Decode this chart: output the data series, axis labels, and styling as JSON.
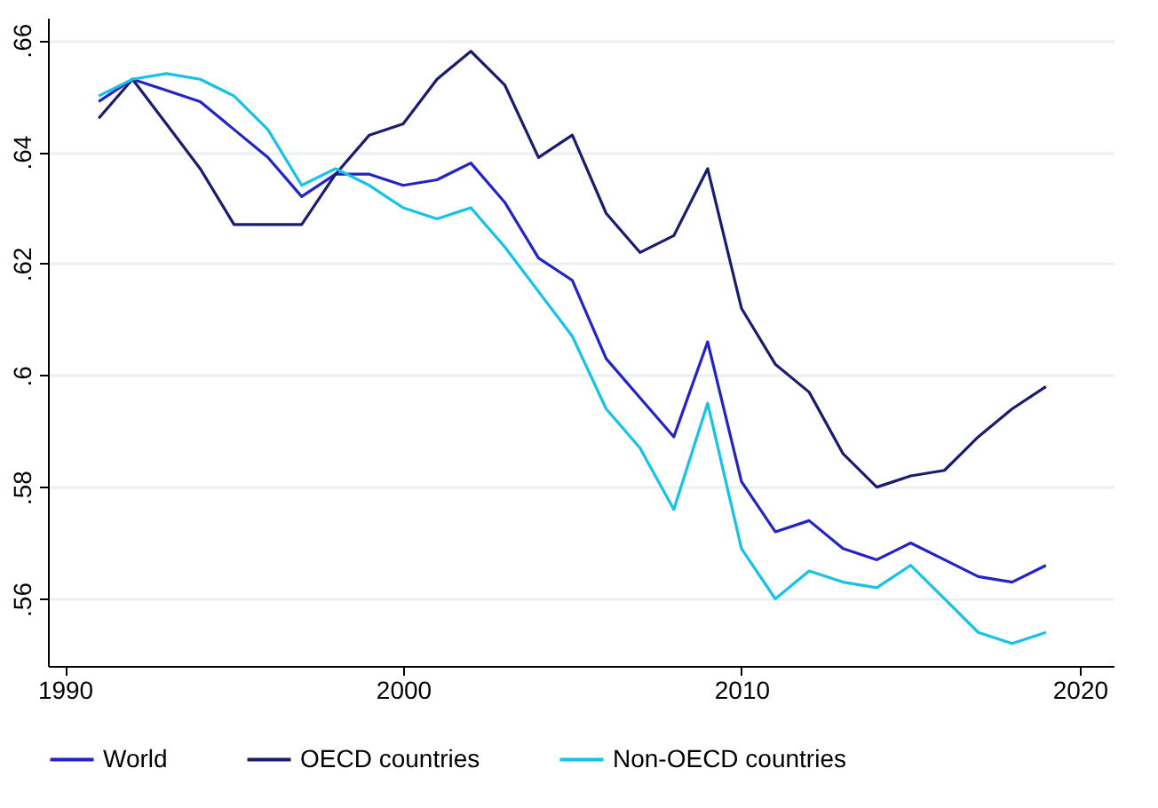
{
  "chart_data": {
    "type": "line",
    "x": [
      1991,
      1992,
      1993,
      1994,
      1995,
      1996,
      1997,
      1998,
      1999,
      2000,
      2001,
      2002,
      2003,
      2004,
      2005,
      2006,
      2007,
      2008,
      2009,
      2010,
      2011,
      2012,
      2013,
      2014,
      2015,
      2016,
      2017,
      2018,
      2019
    ],
    "series": [
      {
        "name": "World",
        "color": "#2323c8",
        "values": [
          0.649,
          0.653,
          0.651,
          0.649,
          0.644,
          0.639,
          0.632,
          0.636,
          0.636,
          0.634,
          0.635,
          0.638,
          0.631,
          0.621,
          0.617,
          0.603,
          0.596,
          0.589,
          0.606,
          0.581,
          0.572,
          0.574,
          0.569,
          0.567,
          0.57,
          0.567,
          0.564,
          0.563,
          0.566
        ]
      },
      {
        "name": "OECD countries",
        "color": "#1c1c6e",
        "values": [
          0.646,
          0.653,
          0.645,
          0.637,
          0.627,
          0.627,
          0.627,
          0.636,
          0.643,
          0.645,
          0.653,
          0.658,
          0.652,
          0.639,
          0.643,
          0.629,
          0.622,
          0.625,
          0.637,
          0.612,
          0.602,
          0.597,
          0.586,
          0.58,
          0.582,
          0.583,
          0.589,
          0.594,
          0.598
        ]
      },
      {
        "name": "Non-OECD countries",
        "color": "#14c3e6",
        "values": [
          0.65,
          0.653,
          0.654,
          0.653,
          0.65,
          0.644,
          0.634,
          0.637,
          0.634,
          0.63,
          0.628,
          0.63,
          0.623,
          0.615,
          0.607,
          0.594,
          0.587,
          0.576,
          0.595,
          0.569,
          0.56,
          0.565,
          0.563,
          0.562,
          0.566,
          0.56,
          0.554,
          0.552,
          0.554
        ]
      }
    ],
    "xlim": [
      1989.5,
      2021
    ],
    "ylim": [
      0.548,
      0.664
    ],
    "xticks": [
      1990,
      2000,
      2010,
      2020
    ],
    "yticks": [
      {
        "value": 0.56,
        "label": ".56"
      },
      {
        "value": 0.58,
        "label": ".58"
      },
      {
        "value": 0.6,
        "label": ".6"
      },
      {
        "value": 0.62,
        "label": ".62"
      },
      {
        "value": 0.64,
        "label": ".64"
      },
      {
        "value": 0.66,
        "label": ".66"
      }
    ],
    "grid": "y",
    "legend": "bottom",
    "marker": "none",
    "line_style": "solid"
  }
}
